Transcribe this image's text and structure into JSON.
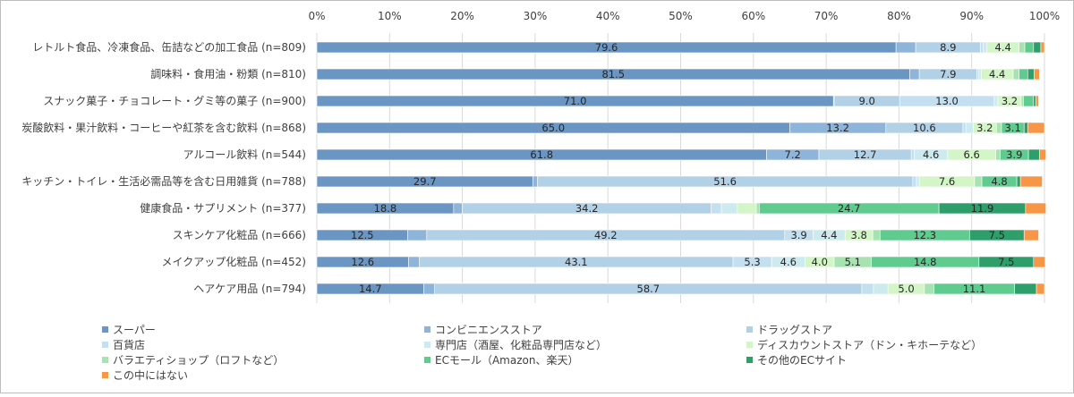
{
  "chart_data": {
    "type": "bar",
    "orientation": "horizontal",
    "stacked": true,
    "normalized": true,
    "title": "",
    "xlim": [
      0,
      100
    ],
    "x_ticks": [
      "0%",
      "10%",
      "20%",
      "30%",
      "40%",
      "50%",
      "60%",
      "70%",
      "80%",
      "90%",
      "100%"
    ],
    "grid": true,
    "legend_position": "bottom",
    "categories": [
      "レトルト食品、冷凍食品、缶詰などの加工食品 (n=809)",
      "調味料・食用油・粉類 (n=810)",
      "スナック菓子・チョコレート・グミ等の菓子 (n=900)",
      "炭酸飲料・果汁飲料・コーヒーや紅茶を含む飲料 (n=868)",
      "アルコール飲料 (n=544)",
      "キッチン・トイレ・生活必需品等を含む日用雑貨 (n=788)",
      "健康食品・サプリメント (n=377)",
      "スキンケア化粧品 (n=666)",
      "メイクアップ化粧品 (n=452)",
      "ヘアケア用品 (n=794)"
    ],
    "series": [
      {
        "name": "スーパー",
        "color": "#6b96c3",
        "values": [
          79.6,
          81.5,
          71.0,
          65.0,
          61.8,
          29.7,
          18.8,
          12.5,
          12.6,
          14.7
        ],
        "labels": [
          "79.6",
          "81.5",
          "71.0",
          "65.0",
          "61.8",
          "29.7",
          "18.8",
          "12.5",
          "12.6",
          "14.7"
        ]
      },
      {
        "name": "コンビニエンスストア",
        "color": "#8eb4da",
        "values": [
          2.7,
          1.3,
          0.1,
          13.2,
          7.2,
          0.6,
          1.2,
          2.6,
          1.5,
          1.5
        ],
        "labels": [
          "",
          "",
          "",
          "13.2",
          "7.2",
          "",
          "",
          "",
          "",
          ""
        ]
      },
      {
        "name": "ドラッグストア",
        "color": "#b3d1e6",
        "values": [
          8.9,
          7.9,
          9.0,
          10.6,
          12.7,
          51.6,
          34.2,
          49.2,
          43.1,
          58.7
        ],
        "labels": [
          "8.9",
          "7.9",
          "9.0",
          "10.6",
          "12.7",
          "51.6",
          "34.2",
          "49.2",
          "43.1",
          "58.7"
        ]
      },
      {
        "name": "百貨店",
        "color": "#c3dff0",
        "values": [
          0.4,
          0.3,
          13.0,
          0.4,
          0.4,
          0.5,
          1.4,
          3.9,
          5.3,
          1.6
        ],
        "labels": [
          "",
          "",
          "13.0",
          "",
          "",
          "",
          "",
          "3.9",
          "5.3",
          ""
        ]
      },
      {
        "name": "専門店（酒屋、化粧品専門店など）",
        "color": "#cdeaf0",
        "values": [
          0.5,
          0.3,
          0.5,
          1.0,
          4.6,
          0.4,
          2.2,
          4.4,
          4.6,
          2.0
        ],
        "labels": [
          "",
          "",
          "",
          "",
          "4.6",
          "",
          "",
          "4.4",
          "4.6",
          ""
        ]
      },
      {
        "name": "ディスカウントストア（ドン・キホーテなど）",
        "color": "#d3f5c8",
        "values": [
          4.4,
          4.4,
          3.2,
          3.2,
          6.6,
          7.6,
          2.6,
          3.8,
          4.0,
          5.0
        ],
        "labels": [
          "4.4",
          "4.4",
          "3.2",
          "3.2",
          "6.6",
          "7.6",
          "",
          "3.8",
          "4.0",
          "5.0"
        ]
      },
      {
        "name": "バラエティショップ（ロフトなど）",
        "color": "#a7e3b1",
        "values": [
          0.8,
          0.8,
          0.3,
          0.7,
          0.6,
          1.0,
          0.4,
          1.0,
          5.1,
          1.3
        ],
        "labels": [
          "",
          "",
          "",
          "",
          "",
          "",
          "",
          "",
          "5.1",
          ""
        ]
      },
      {
        "name": "ECモール（Amazon、楽天）",
        "color": "#5fcb8f",
        "values": [
          1.2,
          1.2,
          1.4,
          3.1,
          3.9,
          4.8,
          24.7,
          12.3,
          14.8,
          11.1
        ],
        "labels": [
          "",
          "",
          "",
          "3.1",
          "3.9",
          "4.8",
          "24.7",
          "12.3",
          "14.8",
          "11.1"
        ]
      },
      {
        "name": "その他のECサイト",
        "color": "#2e9e6b",
        "values": [
          1.0,
          0.9,
          0.3,
          0.5,
          1.5,
          0.5,
          11.9,
          7.5,
          7.5,
          3.0
        ],
        "labels": [
          "",
          "",
          "",
          "",
          "",
          "",
          "11.9",
          "7.5",
          "7.5",
          ""
        ]
      },
      {
        "name": "この中にはない",
        "color": "#f79646",
        "values": [
          0.5,
          0.7,
          0.4,
          2.3,
          0.9,
          3.0,
          2.8,
          2.0,
          1.6,
          1.1
        ],
        "labels": [
          "",
          "",
          "",
          "",
          "",
          "",
          "",
          "",
          "",
          ""
        ]
      }
    ]
  }
}
